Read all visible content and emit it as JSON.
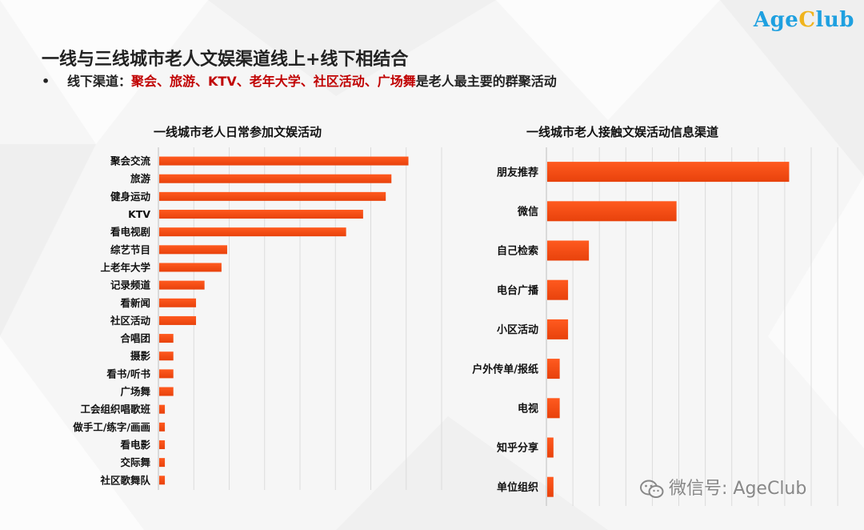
{
  "logo": {
    "part1": "Age",
    "part2": "C",
    "part3": "lub"
  },
  "title": "一线与三线城市老人文娱渠道线上+线下相结合",
  "subtitle": {
    "bullet": "•",
    "prefix": "线下渠道：",
    "highlight": "聚会、旅游、KTV、老年大学、社区活动、广场舞",
    "suffix": "是老人最主要的群聚活动"
  },
  "watermark": "微信号: AgeClub",
  "colors": {
    "bar": "#ff5a1f",
    "bar_dark": "#e8420c",
    "grid": "#dcdcdc",
    "highlight": "#c00000"
  },
  "chart_data": [
    {
      "type": "bar",
      "orientation": "horizontal",
      "title": "一线城市老人日常参加文娱活动",
      "categories": [
        "聚会交流",
        "旅游",
        "健身运动",
        "KTV",
        "看电视剧",
        "综艺节目",
        "上老年大学",
        "记录频道",
        "看新闻",
        "社区活动",
        "合唱团",
        "摄影",
        "看书/听书",
        "广场舞",
        "工会组织唱歌班",
        "做手工/练字/画画",
        "看电影",
        "交际舞",
        "社区歌舞队"
      ],
      "values": [
        44,
        41,
        40,
        36,
        33,
        12,
        11,
        8,
        6.5,
        6.5,
        2.5,
        2.5,
        2.5,
        2.5,
        1,
        1,
        1,
        1,
        1
      ],
      "xlim": [
        0,
        50
      ],
      "grid": true,
      "xlabel": "",
      "ylabel": ""
    },
    {
      "type": "bar",
      "orientation": "horizontal",
      "title": "一线城市老人接触文娱活动信息渠道",
      "categories": [
        "朋友推荐",
        "微信",
        "自己检索",
        "电台广播",
        "小区活动",
        "户外传单/报纸",
        "电视",
        "知乎分享",
        "单位组织"
      ],
      "values": [
        58,
        31,
        10,
        5,
        5,
        3,
        3,
        1.5,
        1.5
      ],
      "xlim": [
        0,
        70
      ],
      "grid": true,
      "xlabel": "",
      "ylabel": ""
    }
  ]
}
